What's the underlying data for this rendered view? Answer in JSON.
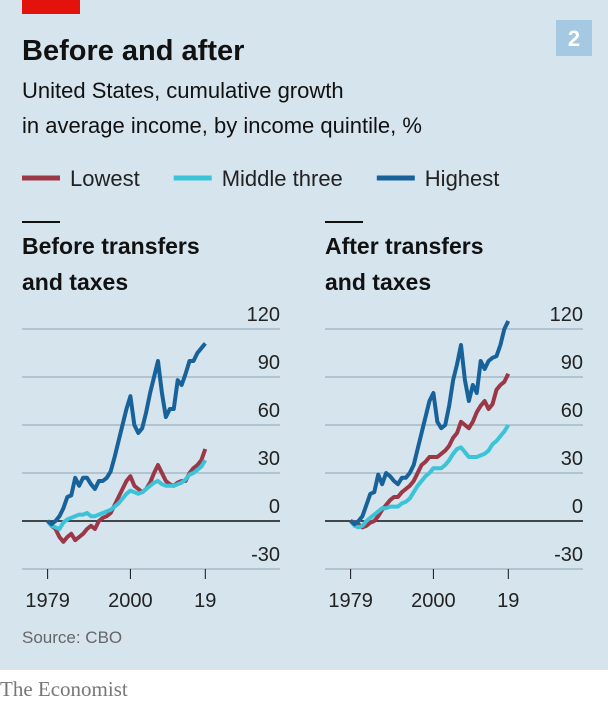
{
  "header": {
    "title": "Before and after",
    "chart_number": "2",
    "subtitle": [
      "United States, cumulative growth",
      "in average income, by income quintile, %"
    ]
  },
  "source": "Source: CBO",
  "brand": "The Economist",
  "chart_data": [
    {
      "type": "line",
      "title": [
        "Before transfers",
        "and taxes"
      ],
      "x": [
        1979,
        1980,
        1981,
        1982,
        1983,
        1984,
        1985,
        1986,
        1987,
        1988,
        1989,
        1990,
        1991,
        1992,
        1993,
        1994,
        1995,
        1996,
        1997,
        1998,
        1999,
        2000,
        2001,
        2002,
        2003,
        2004,
        2005,
        2006,
        2007,
        2008,
        2009,
        2010,
        2011,
        2012,
        2013,
        2014,
        2015,
        2016,
        2017,
        2018,
        2019
      ],
      "series": [
        {
          "name": "Lowest",
          "color": "#9b3848",
          "values": [
            0,
            -3,
            -5,
            -10,
            -13,
            -10,
            -8,
            -12,
            -10,
            -8,
            -5,
            -3,
            -5,
            0,
            2,
            3,
            5,
            10,
            15,
            20,
            25,
            28,
            22,
            20,
            18,
            20,
            24,
            30,
            35,
            30,
            25,
            23,
            22,
            24,
            25,
            25,
            30,
            33,
            35,
            38,
            45
          ]
        },
        {
          "name": "Middle three",
          "color": "#3bc3d8",
          "values": [
            0,
            -3,
            -4,
            -5,
            -1,
            1,
            2,
            3,
            4,
            4,
            5,
            3,
            3,
            4,
            5,
            6,
            7,
            9,
            11,
            14,
            17,
            19,
            18,
            17,
            18,
            20,
            22,
            24,
            25,
            23,
            22,
            22,
            22,
            23,
            24,
            26,
            29,
            30,
            32,
            34,
            38
          ]
        },
        {
          "name": "Highest",
          "color": "#17629a",
          "values": [
            0,
            -2,
            0,
            3,
            8,
            15,
            16,
            27,
            22,
            27,
            27,
            23,
            20,
            25,
            25,
            27,
            31,
            40,
            50,
            60,
            70,
            78,
            60,
            55,
            58,
            68,
            80,
            90,
            100,
            80,
            65,
            70,
            70,
            88,
            85,
            92,
            100,
            100,
            105,
            108,
            111
          ]
        }
      ],
      "xlim": [
        1972.5,
        2024
      ],
      "xticks": [
        1979,
        2000,
        {
          "value": 2019,
          "label": "19"
        }
      ],
      "ylim": [
        -30,
        120
      ],
      "yticks": [
        -30,
        0,
        30,
        60,
        90,
        120
      ],
      "grid": true
    },
    {
      "type": "line",
      "title": [
        "After transfers",
        "and taxes"
      ],
      "x": [
        1979,
        1980,
        1981,
        1982,
        1983,
        1984,
        1985,
        1986,
        1987,
        1988,
        1989,
        1990,
        1991,
        1992,
        1993,
        1994,
        1995,
        1996,
        1997,
        1998,
        1999,
        2000,
        2001,
        2002,
        2003,
        2004,
        2005,
        2006,
        2007,
        2008,
        2009,
        2010,
        2011,
        2012,
        2013,
        2014,
        2015,
        2016,
        2017,
        2018,
        2019
      ],
      "series": [
        {
          "color": "#9b3848",
          "values": [
            0,
            -1,
            -2,
            -4,
            -3,
            -1,
            0,
            3,
            7,
            10,
            13,
            15,
            15,
            18,
            20,
            22,
            25,
            30,
            35,
            37,
            40,
            40,
            40,
            42,
            44,
            47,
            52,
            55,
            62,
            60,
            58,
            62,
            68,
            72,
            75,
            70,
            73,
            82,
            85,
            87,
            92
          ]
        },
        {
          "color": "#3bc3d8",
          "values": [
            0,
            -3,
            -4,
            -3,
            0,
            2,
            4,
            6,
            8,
            8,
            9,
            9,
            9,
            11,
            12,
            14,
            18,
            22,
            25,
            28,
            30,
            33,
            33,
            33,
            35,
            38,
            42,
            45,
            46,
            43,
            40,
            40,
            40,
            41,
            42,
            44,
            48,
            50,
            53,
            56,
            60
          ]
        },
        {
          "color": "#17629a",
          "values": [
            0,
            -2,
            0,
            3,
            10,
            17,
            18,
            29,
            23,
            30,
            28,
            25,
            23,
            27,
            27,
            30,
            35,
            45,
            55,
            65,
            75,
            80,
            62,
            58,
            60,
            72,
            88,
            98,
            110,
            88,
            75,
            85,
            80,
            100,
            95,
            100,
            102,
            103,
            110,
            120,
            125
          ]
        }
      ],
      "xlim": [
        1972.5,
        2024
      ],
      "xticks": [
        1979,
        2000,
        {
          "value": 2019,
          "label": "19"
        }
      ],
      "ylim": [
        -30,
        120
      ],
      "yticks": [
        -30,
        0,
        30,
        60,
        90,
        120
      ],
      "grid": true
    }
  ]
}
